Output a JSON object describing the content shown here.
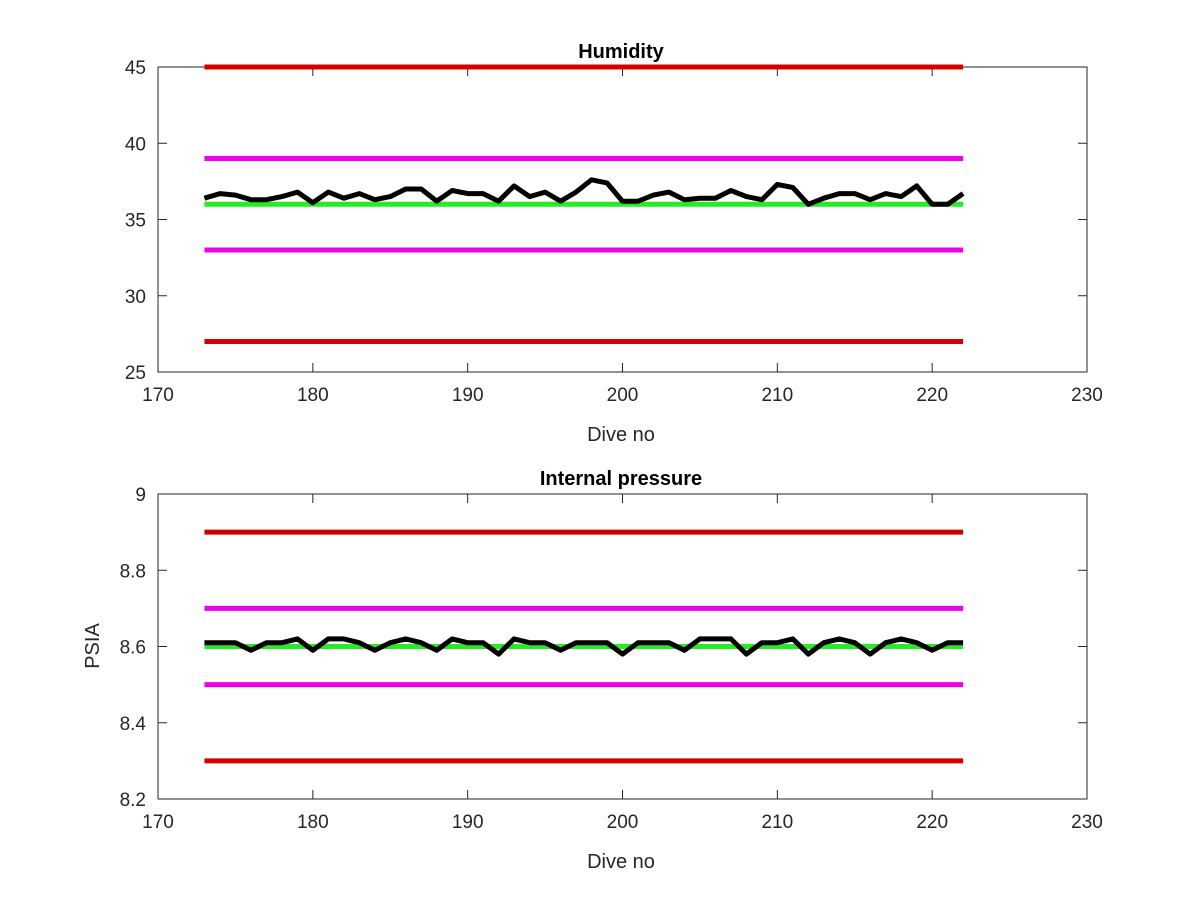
{
  "chart_data": [
    {
      "type": "line",
      "title": "Humidity",
      "xlabel": "Dive no",
      "ylabel": "",
      "xlim": [
        170,
        230
      ],
      "ylim": [
        25,
        45
      ],
      "xticks": [
        "170",
        "180",
        "190",
        "200",
        "210",
        "220",
        "230"
      ],
      "yticks": [
        "25",
        "30",
        "35",
        "40",
        "45"
      ],
      "grid": false,
      "reference_lines": [
        {
          "y": 45,
          "x": [
            173,
            222
          ],
          "color": "#d40000"
        },
        {
          "y": 39,
          "x": [
            173,
            222
          ],
          "color": "#ee00ee"
        },
        {
          "y": 36,
          "x": [
            173,
            222
          ],
          "color": "#22ee22"
        },
        {
          "y": 33,
          "x": [
            173,
            222
          ],
          "color": "#ee00ee"
        },
        {
          "y": 27,
          "x": [
            173,
            222
          ],
          "color": "#d40000"
        }
      ],
      "series": [
        {
          "color": "#000000",
          "x": [
            173,
            174,
            175,
            176,
            177,
            178,
            179,
            180,
            181,
            182,
            183,
            184,
            185,
            186,
            187,
            188,
            189,
            190,
            191,
            192,
            193,
            194,
            195,
            196,
            197,
            198,
            199,
            200,
            201,
            202,
            203,
            204,
            205,
            206,
            207,
            208,
            209,
            210,
            211,
            212,
            213,
            214,
            215,
            216,
            217,
            218,
            219,
            220,
            221,
            222
          ],
          "values": [
            36.4,
            36.7,
            36.6,
            36.3,
            36.3,
            36.5,
            36.8,
            36.1,
            36.8,
            36.4,
            36.7,
            36.3,
            36.5,
            37.0,
            37.0,
            36.2,
            36.9,
            36.7,
            36.7,
            36.2,
            37.2,
            36.5,
            36.8,
            36.2,
            36.8,
            37.6,
            37.4,
            36.2,
            36.2,
            36.6,
            36.8,
            36.3,
            36.4,
            36.4,
            36.9,
            36.5,
            36.3,
            37.3,
            37.1,
            36.0,
            36.4,
            36.7,
            36.7,
            36.3,
            36.7,
            36.5,
            37.2,
            36.0,
            36.0,
            36.7
          ]
        }
      ]
    },
    {
      "type": "line",
      "title": "Internal pressure",
      "xlabel": "Dive no",
      "ylabel": "PSIA",
      "xlim": [
        170,
        230
      ],
      "ylim": [
        8.2,
        9
      ],
      "xticks": [
        "170",
        "180",
        "190",
        "200",
        "210",
        "220",
        "230"
      ],
      "yticks": [
        "8.2",
        "8.4",
        "8.6",
        "8.8",
        "9"
      ],
      "grid": false,
      "reference_lines": [
        {
          "y": 8.9,
          "x": [
            173,
            222
          ],
          "color": "#d40000"
        },
        {
          "y": 8.7,
          "x": [
            173,
            222
          ],
          "color": "#ee00ee"
        },
        {
          "y": 8.6,
          "x": [
            173,
            222
          ],
          "color": "#22ee22"
        },
        {
          "y": 8.5,
          "x": [
            173,
            222
          ],
          "color": "#ee00ee"
        },
        {
          "y": 8.3,
          "x": [
            173,
            222
          ],
          "color": "#d40000"
        }
      ],
      "series": [
        {
          "color": "#000000",
          "x": [
            173,
            174,
            175,
            176,
            177,
            178,
            179,
            180,
            181,
            182,
            183,
            184,
            185,
            186,
            187,
            188,
            189,
            190,
            191,
            192,
            193,
            194,
            195,
            196,
            197,
            198,
            199,
            200,
            201,
            202,
            203,
            204,
            205,
            206,
            207,
            208,
            209,
            210,
            211,
            212,
            213,
            214,
            215,
            216,
            217,
            218,
            219,
            220,
            221,
            222
          ],
          "values": [
            8.61,
            8.61,
            8.61,
            8.59,
            8.61,
            8.61,
            8.62,
            8.59,
            8.62,
            8.62,
            8.61,
            8.59,
            8.61,
            8.62,
            8.61,
            8.59,
            8.62,
            8.61,
            8.61,
            8.58,
            8.62,
            8.61,
            8.61,
            8.59,
            8.61,
            8.61,
            8.61,
            8.58,
            8.61,
            8.61,
            8.61,
            8.59,
            8.62,
            8.62,
            8.62,
            8.58,
            8.61,
            8.61,
            8.62,
            8.58,
            8.61,
            8.62,
            8.61,
            8.58,
            8.61,
            8.62,
            8.61,
            8.59,
            8.61,
            8.61
          ]
        }
      ]
    }
  ]
}
